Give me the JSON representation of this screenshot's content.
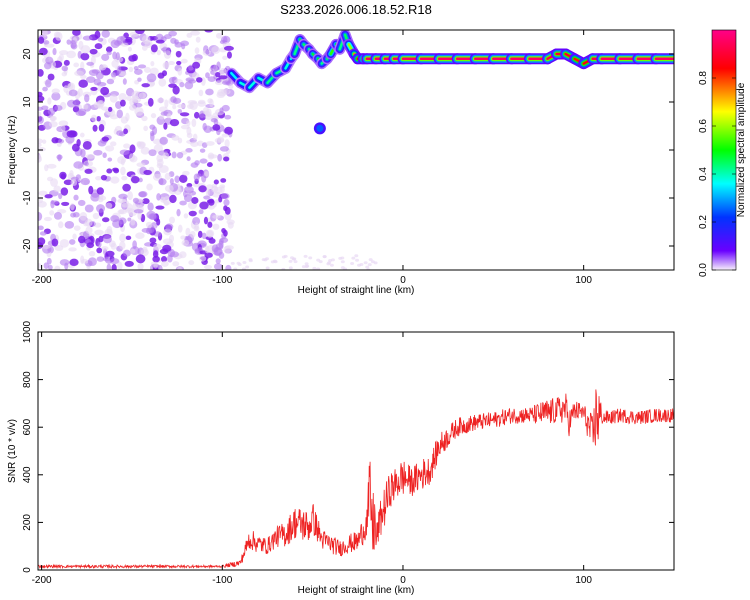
{
  "figure_title": "S233.2026.006.18.52.R18",
  "colors": {
    "spectrum_low": "#e8d8f4",
    "spectrum_mid": "#7a1ee8",
    "snr_line": "#ee2222",
    "colorbar_stops": [
      "#f8f0fb",
      "#6a00ff",
      "#0033ff",
      "#00ffff",
      "#00ff00",
      "#ffff00",
      "#ff0000",
      "#ff0088"
    ]
  },
  "chart_data": [
    {
      "type": "heatmap",
      "title": "S233.2026.006.18.52.R18",
      "xlabel": "Height of straight line (km)",
      "ylabel": "Frequency (Hz)",
      "xlim": [
        -202,
        150
      ],
      "ylim": [
        -25,
        25
      ],
      "xticks": [
        -200,
        -100,
        0,
        100
      ],
      "yticks": [
        -20,
        -10,
        0,
        10,
        20
      ],
      "noise_region_x": [
        -202,
        -95
      ],
      "signal_track": {
        "x": [
          -95,
          -90,
          -85,
          -80,
          -75,
          -70,
          -65,
          -62,
          -60,
          -57,
          -55,
          -52,
          -50,
          -47,
          -45,
          -42,
          -40,
          -37,
          -35,
          -32,
          -30,
          -27,
          -25,
          -22,
          -20,
          -15,
          -10,
          -5,
          0,
          10,
          20,
          30,
          40,
          50,
          60,
          70,
          80,
          85,
          90,
          95,
          100,
          105,
          110,
          120,
          130,
          140,
          150
        ],
        "freq": [
          16,
          14,
          13,
          15,
          14,
          16,
          17,
          19,
          20,
          23,
          22,
          21,
          20,
          19,
          18,
          19,
          20,
          22,
          21,
          24,
          22,
          20,
          19,
          19,
          19,
          19,
          19,
          19,
          19,
          19,
          19,
          19,
          19,
          19,
          19,
          19,
          19,
          20,
          20,
          19,
          18,
          19,
          19,
          19,
          19,
          19,
          19
        ],
        "amplitude": [
          0.35,
          0.35,
          0.4,
          0.35,
          0.4,
          0.45,
          0.4,
          0.35,
          0.4,
          0.45,
          0.5,
          0.4,
          0.45,
          0.5,
          0.45,
          0.4,
          0.5,
          0.55,
          0.45,
          0.4,
          0.5,
          0.7,
          0.8,
          0.9,
          0.95,
          0.95,
          0.95,
          0.95,
          0.95,
          0.95,
          0.95,
          0.95,
          0.95,
          0.95,
          0.95,
          0.95,
          0.95,
          0.9,
          0.9,
          0.85,
          0.8,
          0.9,
          0.95,
          0.95,
          0.95,
          0.95,
          0.95
        ]
      },
      "isolated_blob": {
        "x": -46,
        "freq": 4.5,
        "amplitude": 0.25
      },
      "colorbar": {
        "label": "Normalized spectral amplitude",
        "range": [
          0,
          1
        ],
        "ticks": [
          0.0,
          0.2,
          0.4,
          0.6,
          0.8
        ]
      }
    },
    {
      "type": "line",
      "title": "",
      "xlabel": "Height of straight line (km)",
      "ylabel": "SNR (10 * v/v)",
      "xlim": [
        -202,
        150
      ],
      "ylim": [
        0,
        1000
      ],
      "xticks": [
        -200,
        -100,
        0,
        100
      ],
      "yticks": [
        0,
        200,
        400,
        600,
        800,
        1000
      ],
      "series": [
        {
          "name": "",
          "x": [
            -202,
            -150,
            -100,
            -90,
            -85,
            -80,
            -75,
            -70,
            -65,
            -60,
            -55,
            -52,
            -50,
            -45,
            -40,
            -35,
            -30,
            -25,
            -20,
            -18,
            -17,
            -16,
            -15,
            -13,
            -10,
            -7,
            -5,
            -2,
            0,
            5,
            10,
            15,
            20,
            25,
            30,
            40,
            50,
            60,
            70,
            80,
            85,
            90,
            92,
            95,
            100,
            105,
            107,
            108,
            109,
            110,
            115,
            120,
            130,
            140,
            150
          ],
          "mean": [
            15,
            15,
            15,
            30,
            130,
            110,
            100,
            140,
            150,
            200,
            190,
            180,
            220,
            130,
            110,
            90,
            110,
            120,
            200,
            330,
            160,
            240,
            120,
            200,
            270,
            340,
            350,
            380,
            390,
            370,
            400,
            420,
            520,
            560,
            600,
            620,
            630,
            650,
            650,
            660,
            670,
            680,
            620,
            670,
            660,
            560,
            660,
            660,
            640,
            640,
            640,
            650,
            640,
            650,
            650
          ],
          "jitter": [
            12,
            12,
            10,
            30,
            90,
            80,
            70,
            90,
            110,
            140,
            150,
            130,
            140,
            90,
            80,
            70,
            80,
            90,
            140,
            400,
            180,
            450,
            120,
            150,
            180,
            150,
            140,
            160,
            160,
            120,
            140,
            120,
            110,
            90,
            80,
            70,
            70,
            70,
            70,
            120,
            110,
            140,
            120,
            90,
            80,
            180,
            300,
            350,
            250,
            60,
            60,
            60,
            60,
            60,
            60
          ]
        }
      ]
    }
  ]
}
